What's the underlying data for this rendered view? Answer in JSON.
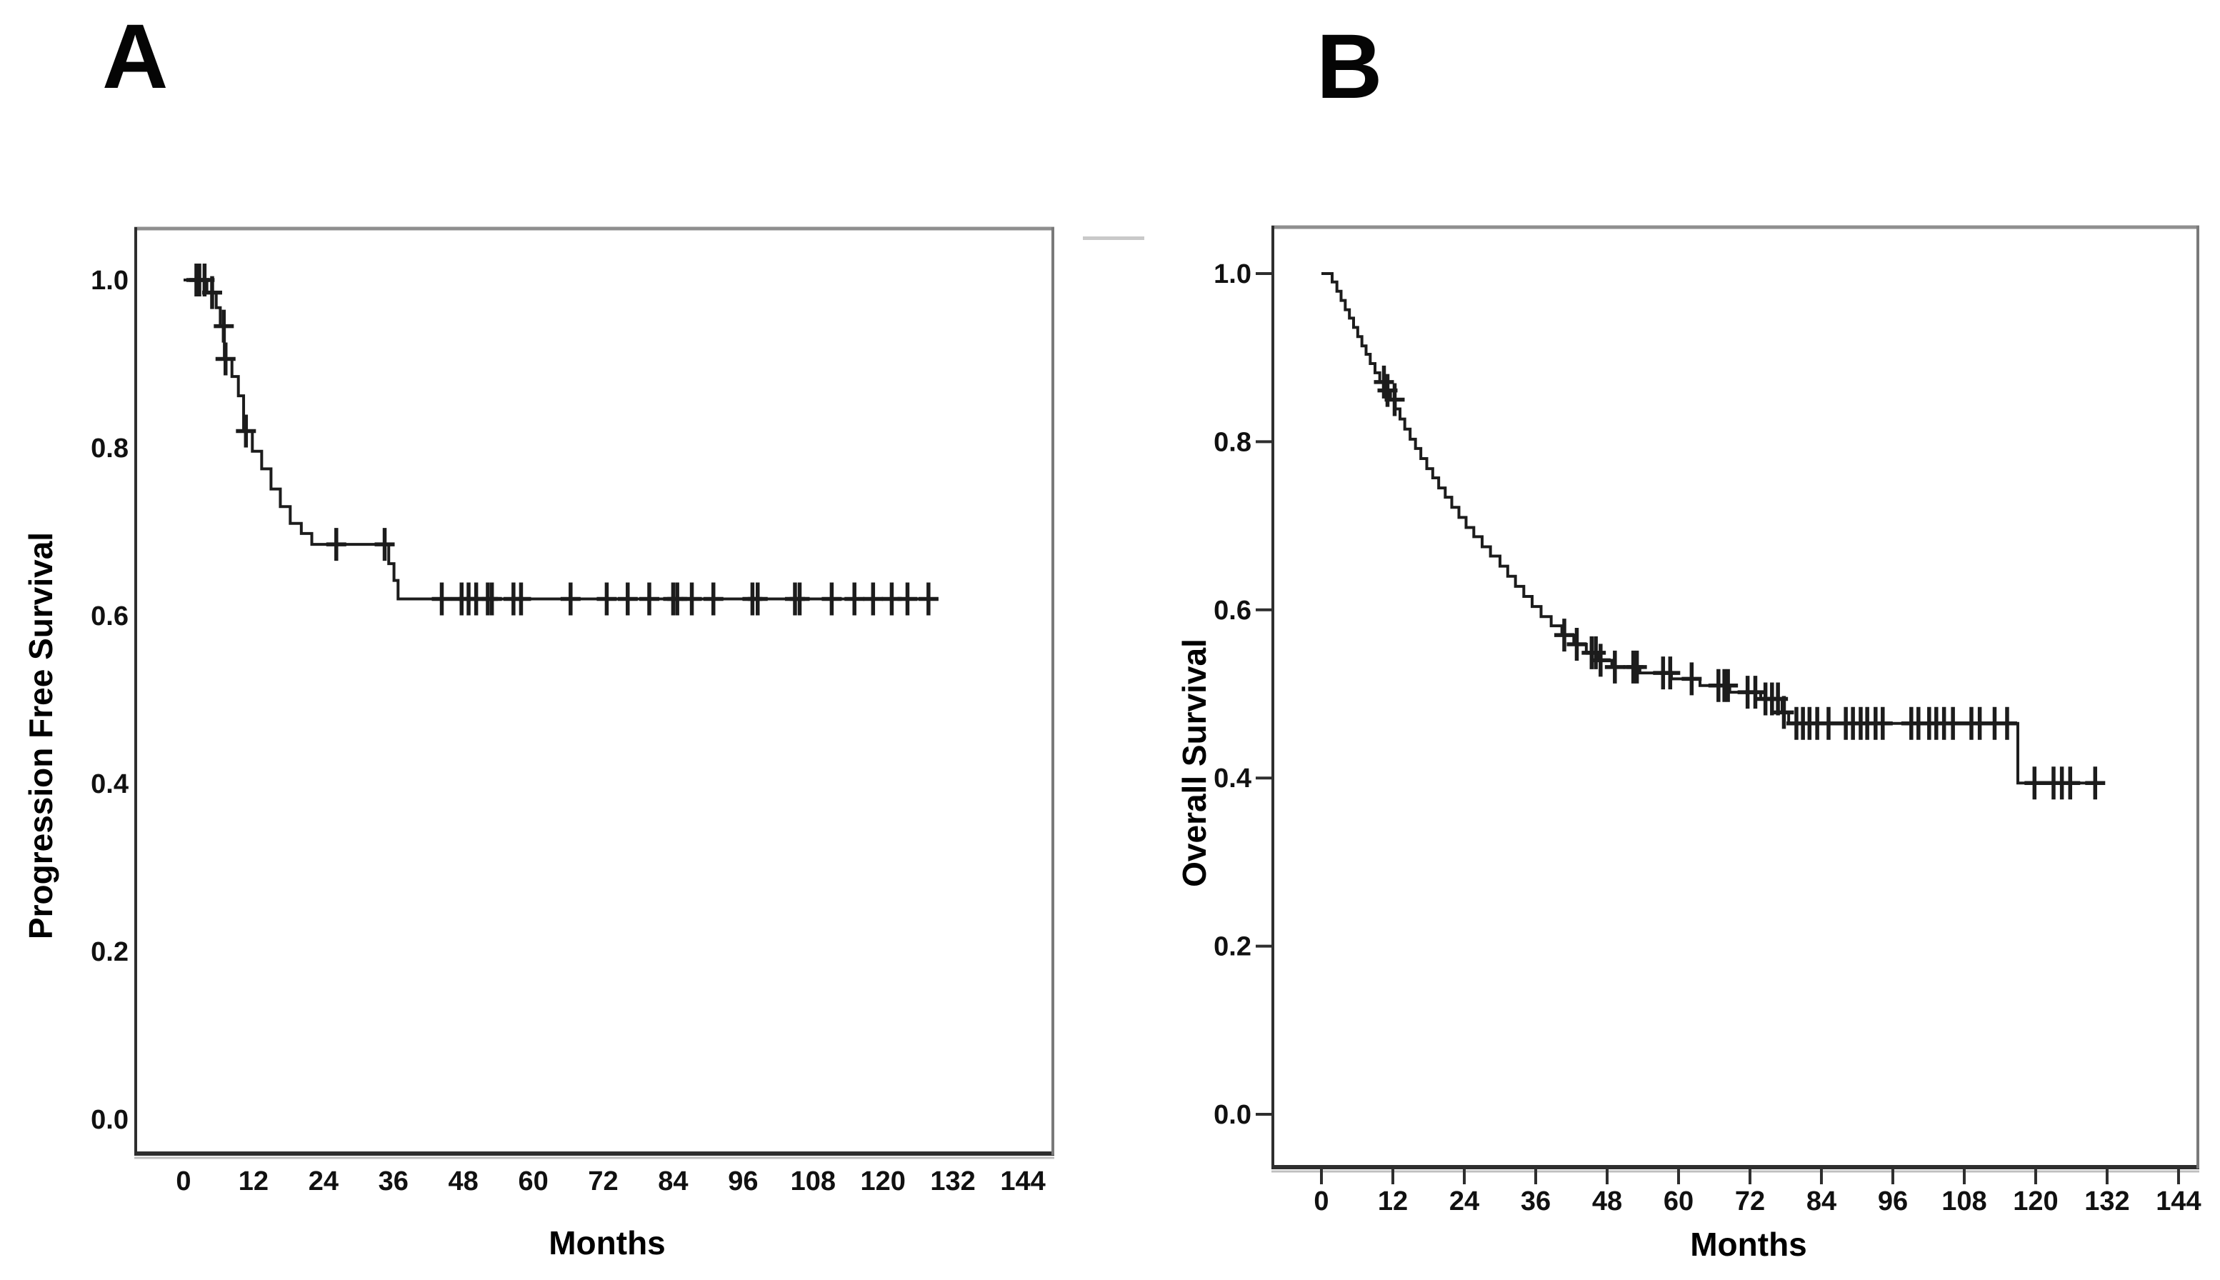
{
  "figure": {
    "background": "#ffffff",
    "artifact_dash_color": "#c9c9c9",
    "panels": [
      {
        "label": "A",
        "ylabel": "Progression Free Survival",
        "xlabel": "Months",
        "chart_data": {
          "type": "line",
          "subtype": "kaplan_meier_step",
          "title": "",
          "xlabel": "Months",
          "ylabel": "Progression Free Survival",
          "x_ticks": [
            0,
            12,
            24,
            36,
            48,
            60,
            72,
            84,
            96,
            108,
            120,
            132,
            144
          ],
          "y_ticks": [
            "1.0",
            "0.8",
            "0.6",
            "0.4",
            "0.2",
            "0.0"
          ],
          "xlim": [
            0,
            150
          ],
          "ylim": [
            0,
            1.05
          ],
          "grid": false,
          "axis_tick_marks": false,
          "line_color": "#1c1c1c",
          "steps": [
            [
              0,
              1.0
            ],
            [
              4,
              0.985
            ],
            [
              5.6,
              0.967
            ],
            [
              6.3,
              0.945
            ],
            [
              7.0,
              0.906
            ],
            [
              8.3,
              0.885
            ],
            [
              9.4,
              0.862
            ],
            [
              10.3,
              0.82
            ],
            [
              11.8,
              0.796
            ],
            [
              13.4,
              0.775
            ],
            [
              15.0,
              0.751
            ],
            [
              16.6,
              0.73
            ],
            [
              18.3,
              0.71
            ],
            [
              20.2,
              0.698
            ],
            [
              22.0,
              0.685
            ],
            [
              35.2,
              0.662
            ],
            [
              36.1,
              0.642
            ],
            [
              36.8,
              0.62
            ]
          ],
          "end_month": 129.5,
          "plateau_value": 0.62,
          "censor_months": [
            2.2,
            2.7,
            3.6,
            4.9,
            6.9,
            7.2,
            10.7,
            26.2,
            34.5,
            44.3,
            47.7,
            48.9,
            50.2,
            52.2,
            52.9,
            56.6,
            57.9,
            66.4,
            72.6,
            76.2,
            79.9,
            84.0,
            84.7,
            87.2,
            90.9,
            97.6,
            98.5,
            104.9,
            105.7,
            111.2,
            115.1,
            118.3,
            121.5,
            124.2,
            127.8
          ]
        }
      },
      {
        "label": "B",
        "ylabel": "Overall Survival",
        "xlabel": "Months",
        "chart_data": {
          "type": "line",
          "subtype": "kaplan_meier_step",
          "title": "",
          "xlabel": "Months",
          "ylabel": "Overall Survival",
          "x_ticks": [
            0,
            12,
            24,
            36,
            48,
            60,
            72,
            84,
            96,
            108,
            120,
            132,
            144
          ],
          "y_ticks": [
            "1.0",
            "0.8",
            "0.6",
            "0.4",
            "0.2",
            "0.0"
          ],
          "xlim": [
            0,
            150
          ],
          "ylim": [
            0,
            1.05
          ],
          "grid": false,
          "axis_tick_marks": true,
          "line_color": "#1c1c1c",
          "steps": [
            [
              0,
              1.0
            ],
            [
              1.8,
              0.99
            ],
            [
              2.6,
              0.979
            ],
            [
              3.3,
              0.968
            ],
            [
              4.0,
              0.957
            ],
            [
              4.7,
              0.947
            ],
            [
              5.4,
              0.936
            ],
            [
              6.1,
              0.925
            ],
            [
              6.8,
              0.914
            ],
            [
              7.5,
              0.904
            ],
            [
              8.2,
              0.893
            ],
            [
              9.0,
              0.882
            ],
            [
              9.8,
              0.871
            ],
            [
              10.8,
              0.861
            ],
            [
              11.6,
              0.85
            ],
            [
              12.4,
              0.839
            ],
            [
              13.2,
              0.827
            ],
            [
              14.0,
              0.815
            ],
            [
              14.9,
              0.803
            ],
            [
              15.8,
              0.792
            ],
            [
              16.7,
              0.78
            ],
            [
              17.7,
              0.768
            ],
            [
              18.7,
              0.757
            ],
            [
              19.7,
              0.745
            ],
            [
              20.8,
              0.734
            ],
            [
              21.9,
              0.722
            ],
            [
              23.1,
              0.71
            ],
            [
              24.3,
              0.698
            ],
            [
              25.6,
              0.687
            ],
            [
              27.0,
              0.675
            ],
            [
              28.4,
              0.664
            ],
            [
              30.0,
              0.652
            ],
            [
              31.3,
              0.64
            ],
            [
              32.6,
              0.628
            ],
            [
              34.0,
              0.616
            ],
            [
              35.4,
              0.604
            ],
            [
              36.9,
              0.592
            ],
            [
              38.6,
              0.581
            ],
            [
              40.4,
              0.57
            ],
            [
              42.4,
              0.559
            ],
            [
              44.5,
              0.549
            ],
            [
              46.6,
              0.54
            ],
            [
              48.8,
              0.532
            ],
            [
              53.5,
              0.525
            ],
            [
              58.8,
              0.518
            ],
            [
              63.6,
              0.51
            ],
            [
              68.6,
              0.502
            ],
            [
              73.8,
              0.494
            ],
            [
              77.4,
              0.478
            ],
            [
              78.5,
              0.465
            ],
            [
              117.0,
              0.394
            ]
          ],
          "end_month": 131,
          "plateau_value": 0.465,
          "final_value": 0.394,
          "censor_months": [
            10.5,
            11.1,
            12.3,
            40.8,
            42.9,
            45.4,
            46.1,
            46.9,
            49.3,
            52.4,
            53.0,
            57.4,
            58.6,
            62.2,
            66.7,
            67.7,
            68.3,
            71.6,
            72.9,
            74.6,
            75.7,
            76.7,
            77.7,
            79.8,
            80.9,
            82.0,
            83.3,
            85.2,
            88.1,
            89.3,
            90.6,
            91.7,
            93.1,
            94.3,
            99.1,
            100.3,
            102.1,
            103.3,
            104.6,
            106.1,
            109.2,
            110.6,
            113.1,
            115.2,
            119.8,
            123.0,
            124.4,
            125.8,
            130.0
          ]
        }
      }
    ]
  }
}
